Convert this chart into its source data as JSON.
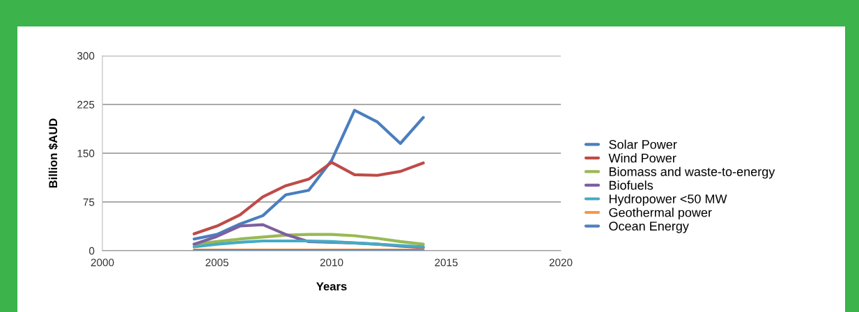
{
  "chart_data": {
    "type": "line",
    "xlabel": "Years",
    "ylabel": "Billion $AUD",
    "x": [
      2004,
      2005,
      2006,
      2007,
      2008,
      2009,
      2010,
      2011,
      2012,
      2013,
      2014
    ],
    "xlim": [
      2000,
      2020
    ],
    "xticks": [
      2000,
      2005,
      2010,
      2015,
      2020
    ],
    "ylim": [
      0,
      300
    ],
    "yticks": [
      0,
      75,
      150,
      225,
      300
    ],
    "grid": "y",
    "legend": "right",
    "line_style": "solid",
    "marker": "none",
    "series": [
      {
        "name": "Solar Power",
        "color": "#4a7ebf",
        "values": [
          18,
          25,
          41,
          54,
          86,
          93,
          139,
          216,
          198,
          165,
          205
        ]
      },
      {
        "name": "Wind Power",
        "color": "#be4b48",
        "values": [
          26,
          38,
          55,
          83,
          100,
          110,
          136,
          117,
          116,
          122,
          135
        ]
      },
      {
        "name": "Biomass and waste-to-energy",
        "color": "#98b954",
        "values": [
          10,
          14,
          18,
          21,
          24,
          25,
          25,
          23,
          19,
          14,
          10
        ]
      },
      {
        "name": "Biofuels",
        "color": "#7d60a0",
        "values": [
          10,
          22,
          38,
          40,
          25,
          14,
          13,
          12,
          10,
          7,
          5
        ]
      },
      {
        "name": "Hydropower <50 MW",
        "color": "#46aac5",
        "values": [
          6,
          10,
          13,
          15,
          15,
          15,
          14,
          12,
          10,
          8,
          6
        ]
      },
      {
        "name": "Geothermal power",
        "color": "#f79646",
        "values": [
          1,
          1,
          1,
          1,
          1,
          1,
          1,
          1,
          1,
          1,
          1
        ]
      },
      {
        "name": "Ocean Energy",
        "color": "#4f81bd",
        "values": [
          0,
          0,
          0,
          0,
          0,
          0,
          0,
          0,
          0,
          0,
          0
        ]
      }
    ]
  }
}
